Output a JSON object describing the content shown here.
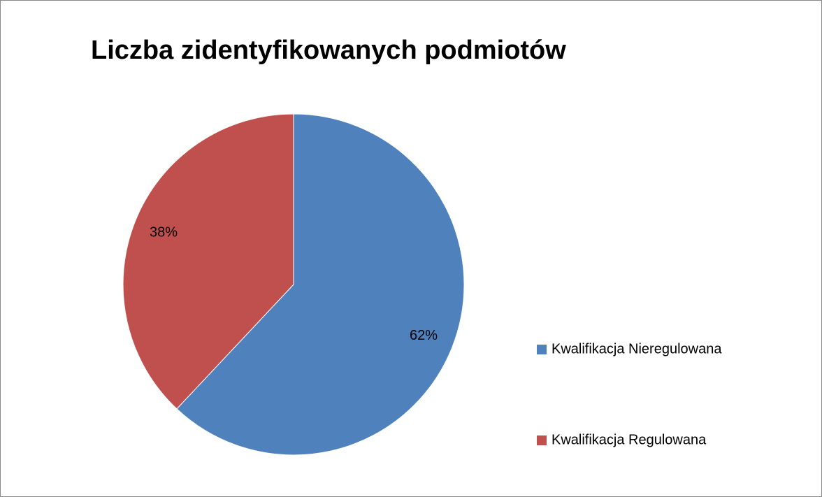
{
  "chart_data": {
    "type": "pie",
    "title": "Liczba zidentyfikowanych podmiotów",
    "categories": [
      "Kwalifikacja Nieregulowana",
      "Kwalifikacja Regulowana"
    ],
    "values": [
      62,
      38
    ],
    "value_labels": [
      "62%",
      "38%"
    ],
    "colors": [
      "#4f81bd",
      "#c0504d"
    ],
    "legend": "right"
  }
}
